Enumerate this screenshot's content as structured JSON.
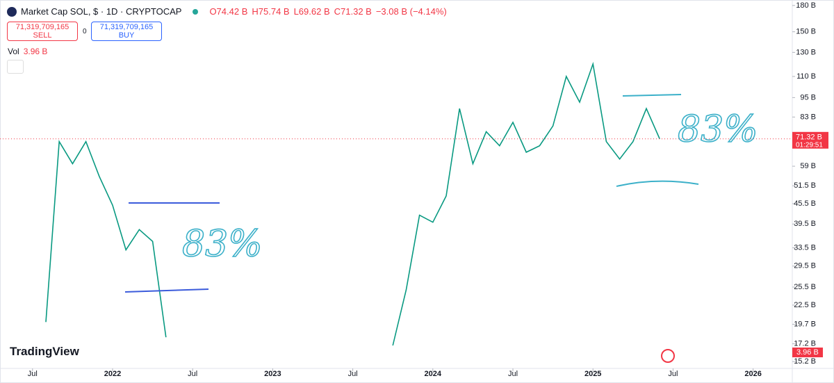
{
  "header": {
    "title": "Market Cap SOL, $ · 1D · CRYPTOCAP",
    "open": "O74.42 B",
    "high": "H75.74 B",
    "low": "L69.62 B",
    "close": "C71.32 B",
    "change": "−3.08 B (−4.14%)",
    "sell_price": "71,319,709,165",
    "sell": "SELL",
    "spread": "0",
    "buy_price": "71,319,709,165",
    "buy": "BUY",
    "vol_label": "Vol",
    "vol_value": "3.96 B",
    "logo": "TradingView"
  },
  "chart_data": {
    "type": "line",
    "color": "#089981",
    "log_scale": true,
    "x": [
      "2021-08",
      "2021-09",
      "2021-10",
      "2021-11",
      "2021-12",
      "2022-01",
      "2022-02",
      "2022-03",
      "2022-04",
      "2022-05",
      "2022-06",
      "2022-07",
      "2022-08",
      "2022-09",
      "2022-10",
      "2022-11",
      "2022-12",
      "2023-01",
      "2023-02",
      "2023-03",
      "2023-04",
      "2023-05",
      "2023-06",
      "2023-07",
      "2023-08",
      "2023-09",
      "2023-10",
      "2023-11",
      "2023-12",
      "2024-01",
      "2024-02",
      "2024-03",
      "2024-04",
      "2024-05",
      "2024-06",
      "2024-07",
      "2024-08",
      "2024-09",
      "2024-10",
      "2024-11",
      "2024-12",
      "2025-01",
      "2025-02",
      "2025-03",
      "2025-04",
      "2025-05",
      "2025-06"
    ],
    "series": [
      {
        "name": "SOL",
        "color": "#089981",
        "values": [
          20,
          70,
          60,
          70,
          55,
          45,
          33,
          38,
          35,
          18,
          null,
          null,
          null,
          null,
          null,
          null,
          null,
          null,
          null,
          null,
          null,
          null,
          null,
          null,
          null,
          null,
          17,
          25,
          42,
          40,
          48,
          88,
          60,
          75,
          68,
          80,
          65,
          68,
          78,
          110,
          92,
          120,
          70,
          62,
          70,
          88,
          71.32
        ]
      }
    ],
    "ylim": [
      14.5,
      187
    ],
    "yticks": [
      {
        "value": 15.2,
        "label": "15.2 B"
      },
      {
        "value": 17.2,
        "label": "17.2 B"
      },
      {
        "value": 19.7,
        "label": "19.7 B"
      },
      {
        "value": 22.5,
        "label": "22.5 B"
      },
      {
        "value": 25.5,
        "label": "25.5 B"
      },
      {
        "value": 29.5,
        "label": "29.5 B"
      },
      {
        "value": 33.5,
        "label": "33.5 B"
      },
      {
        "value": 39.5,
        "label": "39.5 B"
      },
      {
        "value": 45.5,
        "label": "45.5 B"
      },
      {
        "value": 51.5,
        "label": "51.5 B"
      },
      {
        "value": 59,
        "label": "59 B"
      },
      {
        "value": 83,
        "label": "83 B"
      },
      {
        "value": 95,
        "label": "95 B"
      },
      {
        "value": 110,
        "label": "110 B"
      },
      {
        "value": 130,
        "label": "130 B"
      },
      {
        "value": 150,
        "label": "150 B"
      },
      {
        "value": 180,
        "label": "180 B"
      }
    ],
    "xticks": [
      {
        "value": "2021-07",
        "label": "Jul"
      },
      {
        "value": "2022-01",
        "label": "2022"
      },
      {
        "value": "2022-07",
        "label": "Jul"
      },
      {
        "value": "2023-01",
        "label": "2023"
      },
      {
        "value": "2023-07",
        "label": "Jul"
      },
      {
        "value": "2024-01",
        "label": "2024"
      },
      {
        "value": "2024-07",
        "label": "Jul"
      },
      {
        "value": "2025-01",
        "label": "2025"
      },
      {
        "value": "2025-07",
        "label": "Jul"
      },
      {
        "value": "2026-01",
        "label": "2026"
      }
    ],
    "price_label": "71.32 B",
    "countdown": "01:29:51",
    "annotations": [
      "83%",
      "83%"
    ]
  }
}
